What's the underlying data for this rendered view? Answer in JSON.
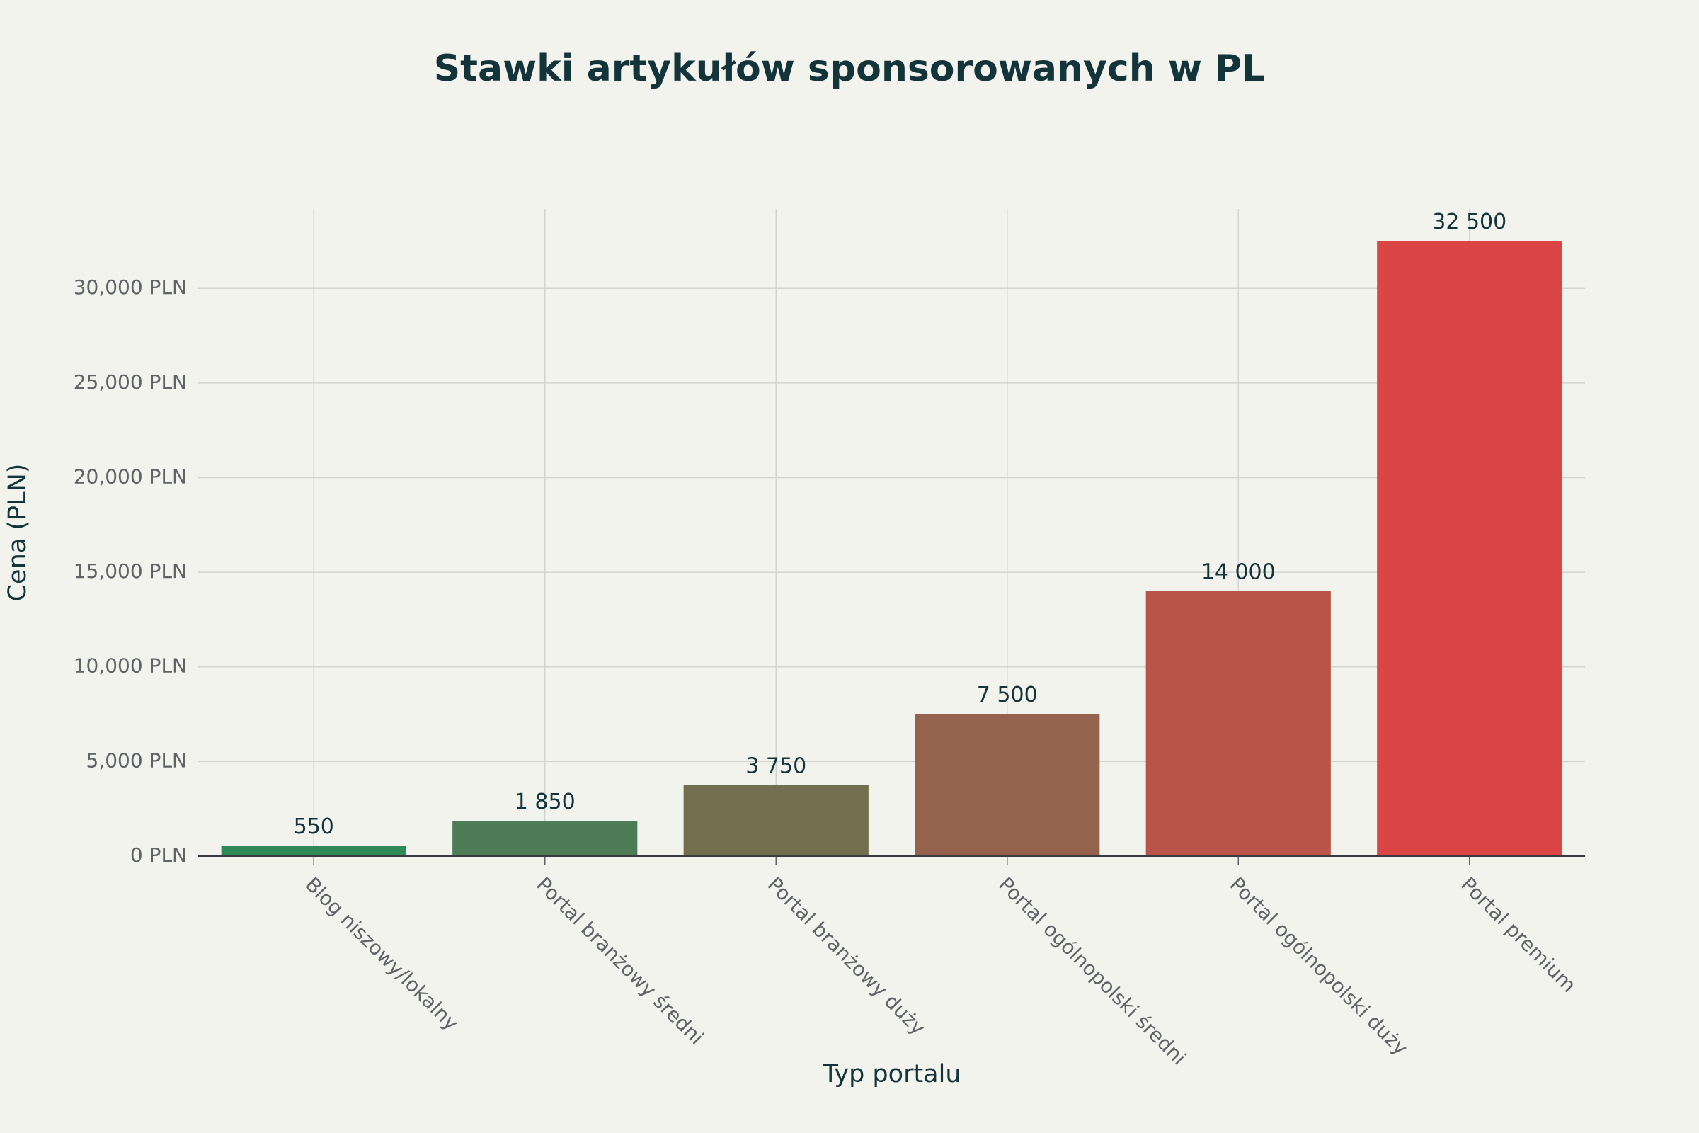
{
  "chart_data": {
    "type": "bar",
    "title": "Stawki artykułów sponsorowanych w PL",
    "x_label": "Typ portalu",
    "y_label": "Cena (PLN)",
    "categories": [
      "Blog niszowy/lokalny",
      "Portal branżowy średni",
      "Portal branżowy duży",
      "Portal ogólnopolski średni",
      "Portal ogólnopolski duży",
      "Portal premium"
    ],
    "values": [
      550,
      1850,
      3750,
      7500,
      14000,
      32500
    ],
    "value_labels": [
      "550",
      "1 850",
      "3 750",
      "7 500",
      "14 000",
      "32 500"
    ],
    "colors": [
      "#2e8b57",
      "#4d7c56",
      "#736e4e",
      "#95624d",
      "#b85449",
      "#db4545"
    ],
    "ylim": [
      0,
      34200
    ],
    "yticks": [
      {
        "value": 0,
        "label": "0 PLN"
      },
      {
        "value": 5000,
        "label": "5,000 PLN"
      },
      {
        "value": 10000,
        "label": "10,000 PLN"
      },
      {
        "value": 15000,
        "label": "15,000 PLN"
      },
      {
        "value": 20000,
        "label": "20,000 PLN"
      },
      {
        "value": 25000,
        "label": "25,000 PLN"
      },
      {
        "value": 30000,
        "label": "30,000 PLN"
      }
    ],
    "grid": true
  }
}
